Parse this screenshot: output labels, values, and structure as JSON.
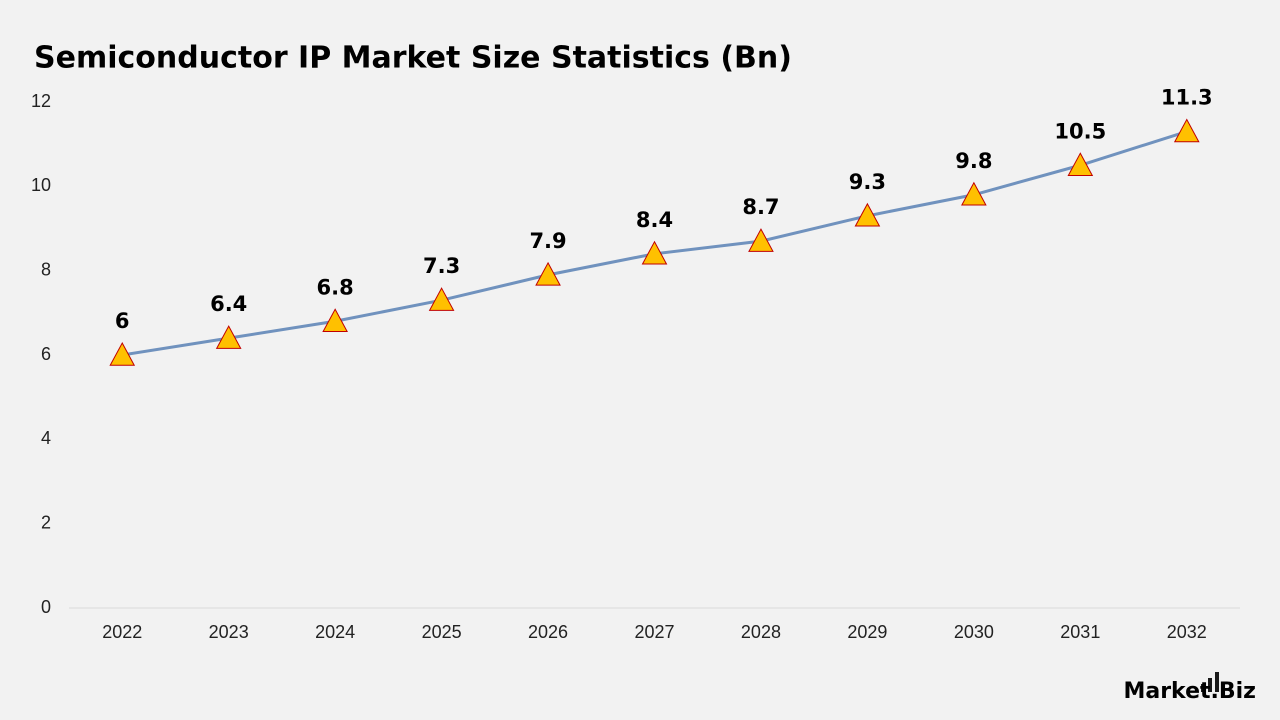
{
  "chart_data": {
    "type": "line",
    "title": "Semiconductor IP Market Size Statistics (Bn)",
    "categories": [
      "2022",
      "2023",
      "2024",
      "2025",
      "2026",
      "2027",
      "2028",
      "2029",
      "2030",
      "2031",
      "2032"
    ],
    "values": [
      6,
      6.4,
      6.8,
      7.3,
      7.9,
      8.4,
      8.7,
      9.3,
      9.8,
      10.5,
      11.3
    ],
    "color": "#7092be",
    "marker_color": "#ffc000",
    "marker_edge_color": "#c00000",
    "ylim": [
      0,
      12
    ],
    "yticks": [
      0,
      2,
      4,
      6,
      8,
      10,
      12
    ],
    "grid": false,
    "watermark": "Market.Biz"
  }
}
